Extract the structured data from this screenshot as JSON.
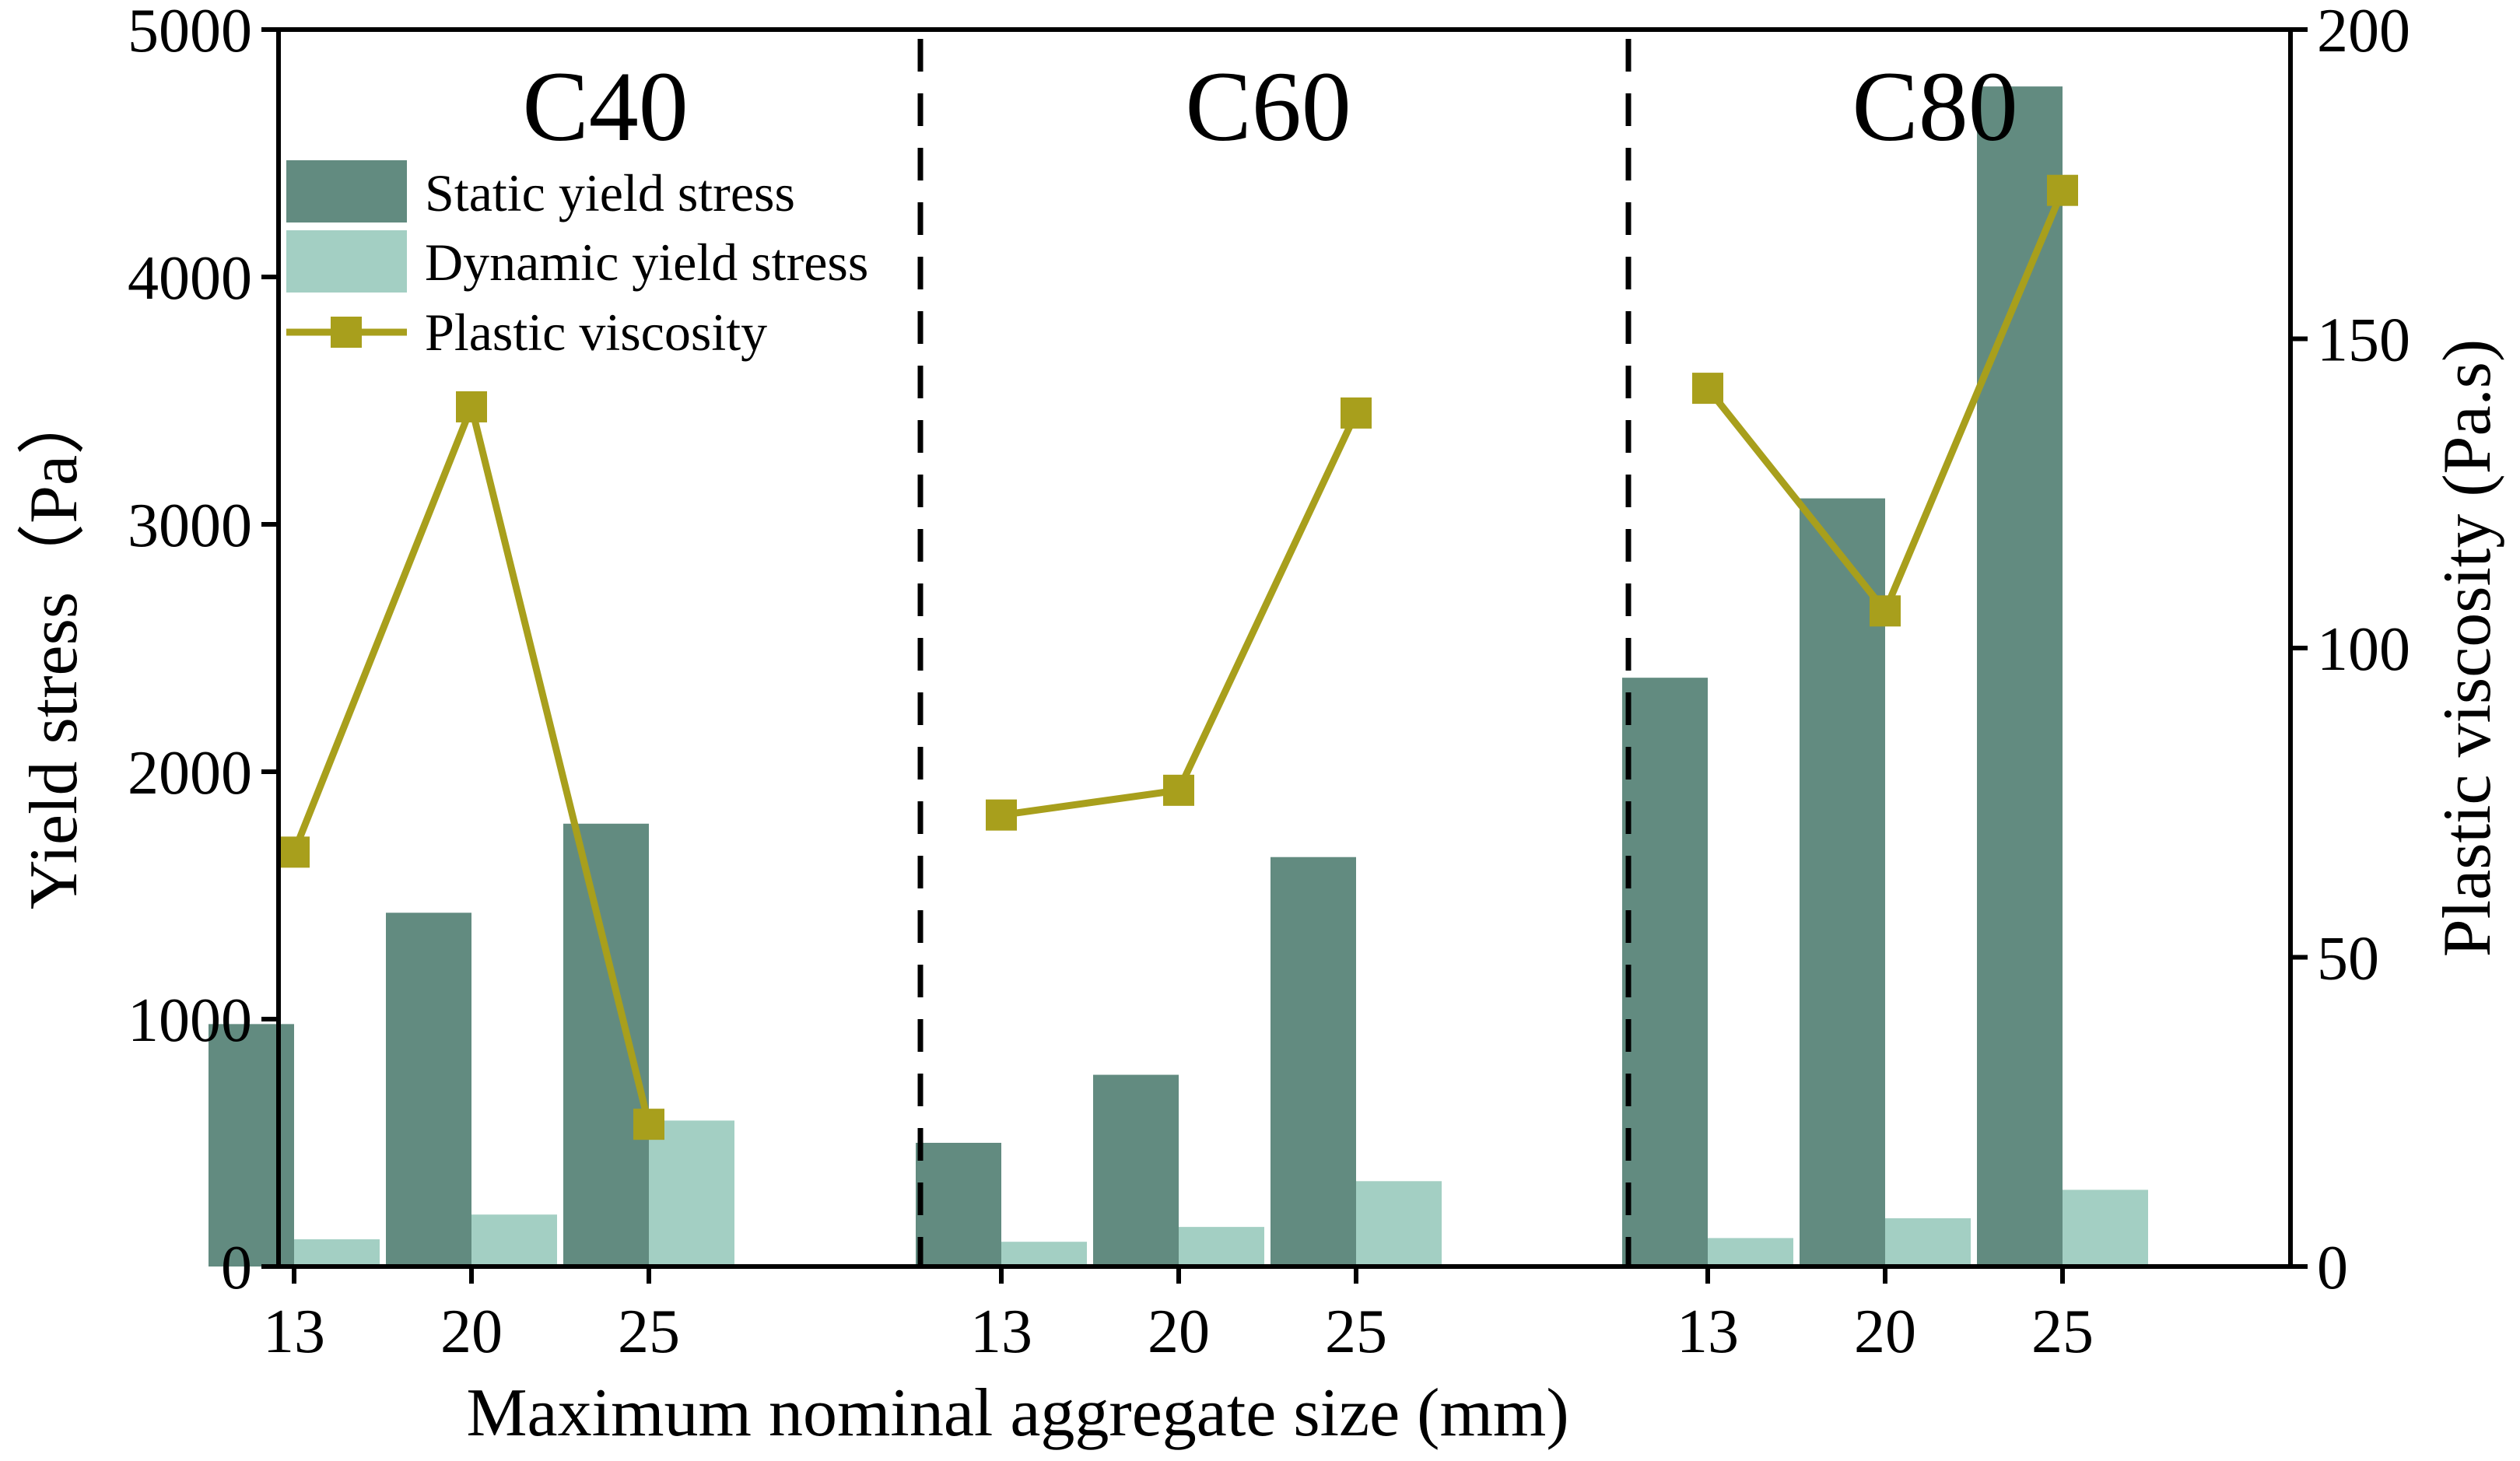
{
  "chart_data": {
    "type": "bar",
    "groups": [
      "C40",
      "C60",
      "C80"
    ],
    "categories": [
      "13",
      "20",
      "25"
    ],
    "xlabel": "Maximum nominal aggregate size (mm)",
    "ylabel": "Yield stress（Pa）",
    "y2label": "Plastic viscosity (Pa.s)",
    "ylim": [
      0,
      5000
    ],
    "y2lim": [
      0,
      200
    ],
    "yticks": [
      "0",
      "1000",
      "2000",
      "3000",
      "4000",
      "5000"
    ],
    "y2ticks": [
      "0",
      "50",
      "100",
      "150",
      "200"
    ],
    "series": [
      {
        "name": "Static yield stress",
        "axis": "left",
        "kind": "bar",
        "color": "#628b80",
        "values": [
          [
            980,
            1430,
            1790
          ],
          [
            500,
            775,
            1655
          ],
          [
            2380,
            3105,
            4770
          ]
        ]
      },
      {
        "name": "Dynamic yield stress",
        "axis": "left",
        "kind": "bar",
        "color": "#a3cfc3",
        "values": [
          [
            110,
            210,
            590
          ],
          [
            100,
            160,
            345
          ],
          [
            115,
            195,
            310
          ]
        ]
      },
      {
        "name": "Plastic viscosity",
        "axis": "right",
        "kind": "line",
        "color": "#a89f1c",
        "values": [
          [
            67,
            139,
            23
          ],
          [
            73,
            77,
            138
          ],
          [
            142,
            106,
            174
          ]
        ]
      }
    ],
    "legend": [
      "Static yield stress",
      "Dynamic yield stress",
      "Plastic viscosity"
    ],
    "legend_position": "top-left"
  }
}
